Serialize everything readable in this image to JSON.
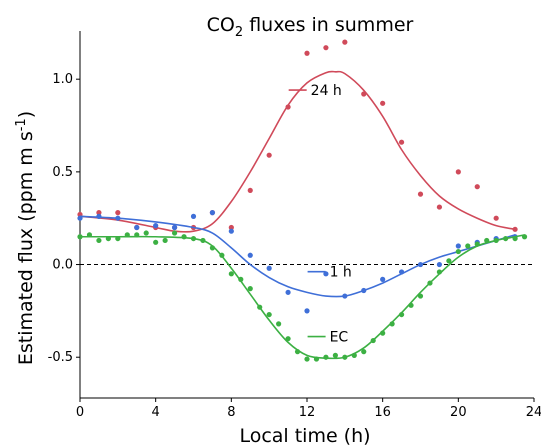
{
  "chart_data": {
    "type": "scatter",
    "title_main": "CO",
    "title_sub": "2",
    "title_rest": " fluxes in summer",
    "xlabel": "Local time (h)",
    "ylabel_main": "Estimated flux (ppm m s",
    "ylabel_sup": "-1",
    "ylabel_end": ")",
    "xlim": [
      0,
      24
    ],
    "ylim": [
      -0.72,
      1.26
    ],
    "xticks": [
      0,
      4,
      8,
      12,
      16,
      20,
      24
    ],
    "yticks": [
      -0.5,
      0.0,
      0.5,
      1.0
    ],
    "ytick_labels": [
      "-0.5",
      "0.0",
      "0.5",
      "1.0"
    ],
    "zero_line": "dashed",
    "series": [
      {
        "name": "24 h",
        "color": "#d04a5a",
        "points": [
          [
            0,
            0.27
          ],
          [
            1,
            0.28
          ],
          [
            2,
            0.28
          ],
          [
            3,
            0.2
          ],
          [
            4,
            0.2
          ],
          [
            5,
            0.2
          ],
          [
            6,
            0.2
          ],
          [
            7,
            0.28
          ],
          [
            8,
            0.2
          ],
          [
            9,
            0.4
          ],
          [
            10,
            0.59
          ],
          [
            11,
            0.85
          ],
          [
            12,
            1.14
          ],
          [
            13,
            1.17
          ],
          [
            14,
            1.2
          ],
          [
            15,
            0.92
          ],
          [
            16,
            0.87
          ],
          [
            17,
            0.66
          ],
          [
            18,
            0.38
          ],
          [
            19,
            0.31
          ],
          [
            20,
            0.5
          ],
          [
            21,
            0.42
          ],
          [
            22,
            0.25
          ],
          [
            23,
            0.19
          ]
        ],
        "curve": [
          [
            0,
            0.26
          ],
          [
            2,
            0.24
          ],
          [
            4,
            0.2
          ],
          [
            5,
            0.18
          ],
          [
            6,
            0.18
          ],
          [
            7,
            0.22
          ],
          [
            8,
            0.34
          ],
          [
            9,
            0.5
          ],
          [
            10,
            0.68
          ],
          [
            11,
            0.86
          ],
          [
            12,
            0.98
          ],
          [
            13,
            1.035
          ],
          [
            13.5,
            1.04
          ],
          [
            14,
            1.03
          ],
          [
            15,
            0.94
          ],
          [
            16,
            0.8
          ],
          [
            17,
            0.62
          ],
          [
            18,
            0.48
          ],
          [
            19,
            0.37
          ],
          [
            20,
            0.3
          ],
          [
            21,
            0.25
          ],
          [
            22,
            0.21
          ],
          [
            23,
            0.19
          ]
        ],
        "label_at": [
          12.3,
          0.92
        ]
      },
      {
        "name": "1 h",
        "color": "#3f6fd8",
        "points": [
          [
            0,
            0.25
          ],
          [
            1,
            0.26
          ],
          [
            2,
            0.25
          ],
          [
            3,
            0.2
          ],
          [
            4,
            0.21
          ],
          [
            5,
            0.2
          ],
          [
            6,
            0.26
          ],
          [
            7,
            0.28
          ],
          [
            8,
            0.18
          ],
          [
            9,
            0.05
          ],
          [
            10,
            -0.02
          ],
          [
            11,
            -0.15
          ],
          [
            12,
            -0.25
          ],
          [
            13,
            -0.05
          ],
          [
            14,
            -0.17
          ],
          [
            15,
            -0.14
          ],
          [
            16,
            -0.08
          ],
          [
            17,
            -0.04
          ],
          [
            18,
            0.0
          ],
          [
            19,
            0.0
          ],
          [
            20,
            0.1
          ],
          [
            21,
            0.12
          ],
          [
            22,
            0.14
          ],
          [
            23,
            0.15
          ]
        ],
        "curve": [
          [
            0,
            0.26
          ],
          [
            2,
            0.25
          ],
          [
            4,
            0.23
          ],
          [
            6,
            0.2
          ],
          [
            7,
            0.17
          ],
          [
            8,
            0.09
          ],
          [
            9,
            0.0
          ],
          [
            10,
            -0.07
          ],
          [
            11,
            -0.12
          ],
          [
            12,
            -0.15
          ],
          [
            13,
            -0.17
          ],
          [
            14,
            -0.17
          ],
          [
            15,
            -0.14
          ],
          [
            16,
            -0.1
          ],
          [
            17,
            -0.05
          ],
          [
            18,
            0.0
          ],
          [
            19,
            0.04
          ],
          [
            20,
            0.07
          ],
          [
            21,
            0.1
          ],
          [
            22,
            0.13
          ],
          [
            23,
            0.16
          ]
        ],
        "label_at": [
          13.3,
          -0.06
        ]
      },
      {
        "name": "EC",
        "color": "#3cb043",
        "points": [
          [
            0,
            0.15
          ],
          [
            0.5,
            0.16
          ],
          [
            1,
            0.13
          ],
          [
            1.5,
            0.14
          ],
          [
            2,
            0.14
          ],
          [
            2.5,
            0.16
          ],
          [
            3,
            0.16
          ],
          [
            3.5,
            0.17
          ],
          [
            4,
            0.12
          ],
          [
            4.5,
            0.13
          ],
          [
            5,
            0.17
          ],
          [
            5.5,
            0.15
          ],
          [
            6,
            0.14
          ],
          [
            6.5,
            0.13
          ],
          [
            7,
            0.09
          ],
          [
            7.5,
            0.05
          ],
          [
            8,
            -0.05
          ],
          [
            8.5,
            -0.08
          ],
          [
            9,
            -0.13
          ],
          [
            9.5,
            -0.23
          ],
          [
            10,
            -0.27
          ],
          [
            10.5,
            -0.32
          ],
          [
            11,
            -0.4
          ],
          [
            11.5,
            -0.47
          ],
          [
            12,
            -0.51
          ],
          [
            12.5,
            -0.51
          ],
          [
            13,
            -0.5
          ],
          [
            13.5,
            -0.49
          ],
          [
            14,
            -0.5
          ],
          [
            14.5,
            -0.49
          ],
          [
            15,
            -0.47
          ],
          [
            15.5,
            -0.41
          ],
          [
            16,
            -0.37
          ],
          [
            16.5,
            -0.32
          ],
          [
            17,
            -0.27
          ],
          [
            17.5,
            -0.22
          ],
          [
            18,
            -0.17
          ],
          [
            18.5,
            -0.1
          ],
          [
            19,
            -0.04
          ],
          [
            19.5,
            0.02
          ],
          [
            20,
            0.07
          ],
          [
            20.5,
            0.1
          ],
          [
            21,
            0.11
          ],
          [
            21.5,
            0.13
          ],
          [
            22,
            0.13
          ],
          [
            22.5,
            0.14
          ],
          [
            23,
            0.14
          ],
          [
            23.5,
            0.15
          ]
        ],
        "curve": [
          [
            0,
            0.15
          ],
          [
            2,
            0.15
          ],
          [
            4,
            0.15
          ],
          [
            6,
            0.14
          ],
          [
            7,
            0.1
          ],
          [
            8,
            -0.02
          ],
          [
            9,
            -0.16
          ],
          [
            10,
            -0.3
          ],
          [
            11,
            -0.42
          ],
          [
            12,
            -0.49
          ],
          [
            13,
            -0.505
          ],
          [
            14,
            -0.5
          ],
          [
            15,
            -0.45
          ],
          [
            16,
            -0.36
          ],
          [
            17,
            -0.26
          ],
          [
            18,
            -0.15
          ],
          [
            19,
            -0.05
          ],
          [
            20,
            0.04
          ],
          [
            21,
            0.1
          ],
          [
            22,
            0.13
          ],
          [
            23,
            0.15
          ],
          [
            23.5,
            0.16
          ]
        ],
        "label_at": [
          13.3,
          -0.41
        ]
      }
    ]
  }
}
